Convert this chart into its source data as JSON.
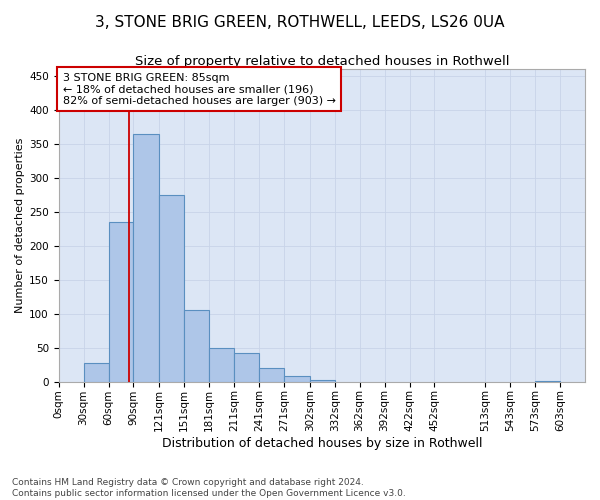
{
  "title1": "3, STONE BRIG GREEN, ROTHWELL, LEEDS, LS26 0UA",
  "title2": "Size of property relative to detached houses in Rothwell",
  "xlabel": "Distribution of detached houses by size in Rothwell",
  "ylabel": "Number of detached properties",
  "bar_left_edges": [
    0,
    30,
    60,
    90,
    121,
    151,
    181,
    211,
    241,
    271,
    302,
    332,
    362,
    392,
    422,
    452,
    513,
    543,
    573
  ],
  "bar_heights": [
    0,
    28,
    235,
    365,
    275,
    105,
    50,
    42,
    20,
    8,
    3,
    0,
    0,
    0,
    0,
    0,
    0,
    0,
    1
  ],
  "bar_widths": [
    30,
    30,
    30,
    31,
    30,
    30,
    30,
    30,
    30,
    31,
    30,
    30,
    30,
    30,
    30,
    61,
    30,
    30,
    30
  ],
  "bar_color": "#aec6e8",
  "bar_edge_color": "#5a8fc0",
  "bar_edge_width": 0.8,
  "subject_line_x": 85,
  "subject_line_color": "#cc0000",
  "annotation_text": "3 STONE BRIG GREEN: 85sqm\n← 18% of detached houses are smaller (196)\n82% of semi-detached houses are larger (903) →",
  "annotation_box_color": "#ffffff",
  "annotation_box_edge_color": "#cc0000",
  "xlim": [
    0,
    633
  ],
  "ylim": [
    0,
    460
  ],
  "yticks": [
    0,
    50,
    100,
    150,
    200,
    250,
    300,
    350,
    400,
    450
  ],
  "xtick_labels": [
    "0sqm",
    "30sqm",
    "60sqm",
    "90sqm",
    "121sqm",
    "151sqm",
    "181sqm",
    "211sqm",
    "241sqm",
    "271sqm",
    "302sqm",
    "332sqm",
    "362sqm",
    "392sqm",
    "422sqm",
    "452sqm",
    "513sqm",
    "543sqm",
    "573sqm",
    "603sqm"
  ],
  "xtick_positions": [
    0,
    30,
    60,
    90,
    121,
    151,
    181,
    211,
    241,
    271,
    302,
    332,
    362,
    392,
    422,
    452,
    513,
    543,
    573,
    603
  ],
  "grid_color": "#c8d4e8",
  "plot_bg_color": "#dce6f5",
  "footer_text": "Contains HM Land Registry data © Crown copyright and database right 2024.\nContains public sector information licensed under the Open Government Licence v3.0.",
  "title1_fontsize": 11,
  "title2_fontsize": 9.5,
  "xlabel_fontsize": 9,
  "ylabel_fontsize": 8,
  "tick_fontsize": 7.5,
  "footer_fontsize": 6.5,
  "annot_fontsize": 8
}
